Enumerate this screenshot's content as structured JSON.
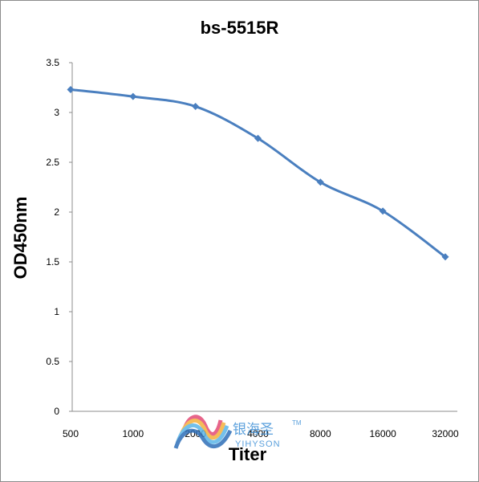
{
  "chart_data": {
    "type": "line",
    "title": "bs-5515R",
    "xlabel": "Titer",
    "ylabel": "OD450nm",
    "categories": [
      "500",
      "1000",
      "2000",
      "4000",
      "8000",
      "16000",
      "32000"
    ],
    "series": [
      {
        "values": [
          3.23,
          3.16,
          3.06,
          2.74,
          2.3,
          2.01,
          1.55
        ]
      }
    ],
    "ylim": [
      0,
      3.5
    ],
    "yticks": [
      "0",
      "0.5",
      "1",
      "1.5",
      "2",
      "2.5",
      "3",
      "3.5"
    ],
    "grid": false,
    "legend": "none",
    "line_color": "#4a7fbf"
  },
  "watermark": {
    "cn_text": "银海圣",
    "en_text": "YIHYSON",
    "tm": "TM"
  }
}
